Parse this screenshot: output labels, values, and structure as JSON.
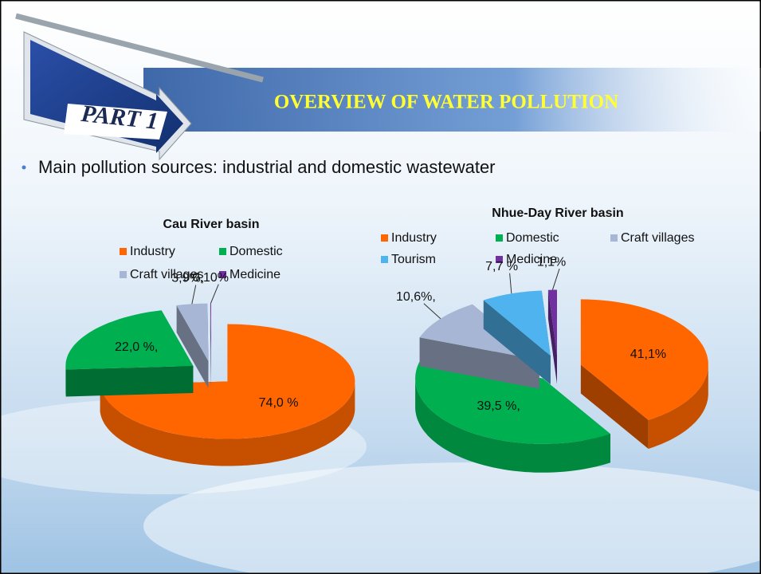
{
  "slide": {
    "part_label": "PART 1",
    "title": "OVERVIEW OF WATER POLLUTION",
    "bullet": "Main pollution sources: industrial and domestic wastewater"
  },
  "chart_data": [
    {
      "type": "pie",
      "title": "Cau River basin",
      "categories": [
        "Industry",
        "Domestic",
        "Craft villages",
        "Medicine"
      ],
      "values": [
        74.0,
        22.0,
        3.9,
        0.1
      ],
      "value_labels": [
        "74,0 %",
        "22,0 %,",
        "3,9%,",
        "0,10%"
      ],
      "colors": [
        "#ff6600",
        "#00b050",
        "#a6b6d4",
        "#7030a0"
      ]
    },
    {
      "type": "pie",
      "title": "Nhue-Day River basin",
      "categories": [
        "Industry",
        "Domestic",
        "Craft villages",
        "Tourism",
        "Medicine"
      ],
      "values": [
        41.1,
        39.5,
        10.6,
        7.7,
        1.1
      ],
      "value_labels": [
        "41,1%",
        "39,5 %,",
        "10,6%,",
        "7,7 %",
        "1,1%"
      ],
      "colors": [
        "#ff6600",
        "#00b050",
        "#a6b6d4",
        "#4fb3f0",
        "#7030a0"
      ]
    }
  ]
}
